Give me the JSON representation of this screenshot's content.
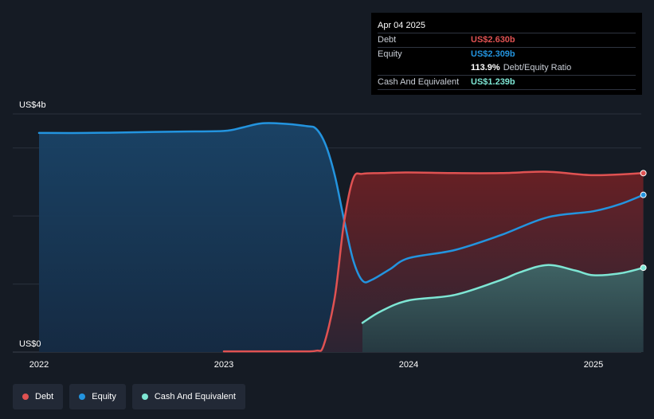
{
  "tooltip": {
    "date": "Apr 04 2025",
    "debt_label": "Debt",
    "debt_value": "US$2.630b",
    "equity_label": "Equity",
    "equity_value": "US$2.309b",
    "ratio_value": "113.9%",
    "ratio_label": "Debt/Equity Ratio",
    "cash_label": "Cash And Equivalent",
    "cash_value": "US$1.239b"
  },
  "legend": {
    "debt": "Debt",
    "equity": "Equity",
    "cash": "Cash And Equivalent"
  },
  "colors": {
    "debt": "#e05252",
    "equity": "#2394df",
    "cash": "#7ee6d4",
    "background": "#151b24",
    "tooltip_bg": "#000000"
  },
  "chart_data": {
    "type": "area",
    "y_unit_label_top": "US$4b",
    "y_unit_label_bottom": "US$0",
    "ylim": [
      0,
      3.5
    ],
    "xlim": [
      2022.0,
      2025.27
    ],
    "x_ticks": [
      2022,
      2023,
      2024,
      2025
    ],
    "x_tick_labels": [
      "2022",
      "2023",
      "2024",
      "2025"
    ],
    "grid": true,
    "legend_position": "bottom-left",
    "series": [
      {
        "name": "Debt",
        "key": "debt",
        "x": [
          2023.0,
          2023.2,
          2023.4,
          2023.5,
          2023.54,
          2023.6,
          2023.65,
          2023.7,
          2023.75,
          2023.85,
          2024.0,
          2024.25,
          2024.5,
          2024.75,
          2025.0,
          2025.27
        ],
        "y": [
          0.01,
          0.01,
          0.01,
          0.02,
          0.1,
          0.8,
          1.9,
          2.55,
          2.62,
          2.63,
          2.64,
          2.63,
          2.63,
          2.65,
          2.6,
          2.63
        ]
      },
      {
        "name": "Equity",
        "key": "equity",
        "x": [
          2022.0,
          2022.25,
          2022.5,
          2022.75,
          2023.0,
          2023.1,
          2023.2,
          2023.3,
          2023.45,
          2023.5,
          2023.55,
          2023.6,
          2023.65,
          2023.7,
          2023.75,
          2023.8,
          2023.9,
          2024.0,
          2024.25,
          2024.5,
          2024.75,
          2025.0,
          2025.15,
          2025.27
        ],
        "y": [
          3.22,
          3.22,
          3.23,
          3.24,
          3.25,
          3.3,
          3.36,
          3.36,
          3.32,
          3.28,
          3.05,
          2.6,
          1.95,
          1.35,
          1.05,
          1.06,
          1.22,
          1.38,
          1.5,
          1.72,
          1.98,
          2.07,
          2.18,
          2.31
        ]
      },
      {
        "name": "Cash And Equivalent",
        "key": "cash",
        "x": [
          2023.75,
          2023.85,
          2024.0,
          2024.25,
          2024.5,
          2024.6,
          2024.75,
          2024.9,
          2025.0,
          2025.15,
          2025.27
        ],
        "y": [
          0.43,
          0.6,
          0.76,
          0.84,
          1.06,
          1.17,
          1.28,
          1.2,
          1.13,
          1.16,
          1.24
        ]
      }
    ]
  }
}
